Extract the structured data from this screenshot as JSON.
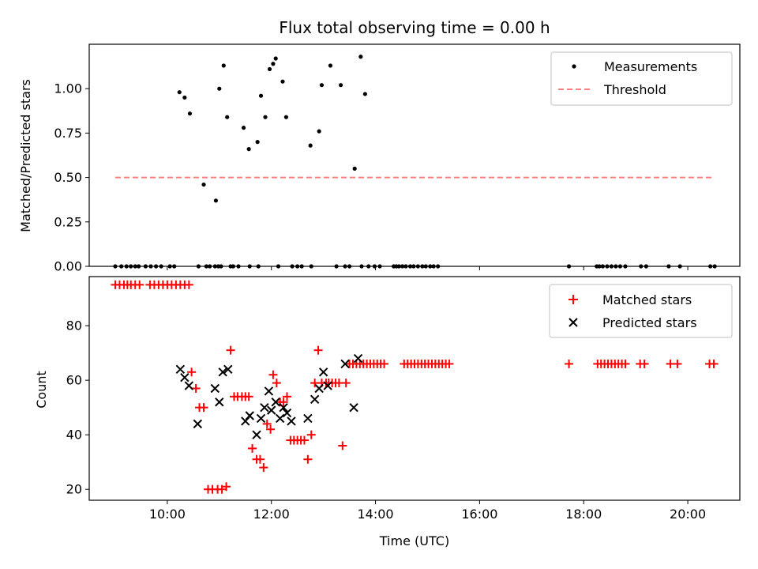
{
  "colors": {
    "measurements": "#000000",
    "threshold": "#ff7f7f",
    "matched": "#ff0000",
    "predicted": "#000000",
    "legend_border": "#cccccc"
  },
  "chart_data": [
    {
      "type": "scatter",
      "title": "Flux total observing time = 0.00 h",
      "xlabel": "",
      "ylabel": "Matched/Predicted stars",
      "xlim": [
        "08:30",
        "21:00"
      ],
      "ylim": [
        0,
        1.25
      ],
      "yticks": [
        "0.00",
        "0.25",
        "0.50",
        "0.75",
        "1.00"
      ],
      "yticks_values": [
        0,
        0.25,
        0.5,
        0.75,
        1.0
      ],
      "xtick_labels_shown": false,
      "grid": false,
      "legend": {
        "position": "upper right",
        "entries": [
          {
            "label": "Measurements",
            "marker": "dot"
          },
          {
            "label": "Threshold",
            "marker": "dashed-line"
          }
        ]
      },
      "series": [
        {
          "name": "Measurements",
          "x": [
            "09:00",
            "09:07",
            "09:13",
            "09:18",
            "09:23",
            "09:27",
            "09:35",
            "09:41",
            "09:47",
            "09:53",
            "10:03",
            "10:08",
            "10:14",
            "10:20",
            "10:26",
            "10:36",
            "10:42",
            "10:45",
            "10:49",
            "10:55",
            "10:56",
            "10:59",
            "11:00",
            "11:02",
            "11:05",
            "11:09",
            "11:13",
            "11:16",
            "11:22",
            "11:28",
            "11:34",
            "11:35",
            "11:44",
            "11:45",
            "11:48",
            "11:53",
            "11:58",
            "12:02",
            "12:05",
            "12:08",
            "12:13",
            "12:17",
            "12:24",
            "12:30",
            "12:35",
            "12:45",
            "12:46",
            "12:55",
            "12:58",
            "13:08",
            "13:15",
            "13:20",
            "13:25",
            "13:30",
            "13:36",
            "13:43",
            "13:44",
            "13:48",
            "13:52",
            "13:59",
            "14:05",
            "14:21",
            "14:24",
            "14:27",
            "14:31",
            "14:35",
            "14:40",
            "14:44",
            "14:49",
            "14:54",
            "14:58",
            "15:03",
            "15:07",
            "15:12",
            "17:43",
            "18:15",
            "18:18",
            "18:22",
            "18:27",
            "18:32",
            "18:37",
            "18:42",
            "18:48",
            "19:06",
            "19:12",
            "19:38",
            "19:51",
            "20:26",
            "20:31"
          ],
          "y": [
            0,
            0,
            0,
            0,
            0,
            0,
            0,
            0,
            0,
            0,
            0,
            0,
            0.98,
            0.95,
            0.86,
            0,
            0.46,
            0,
            0,
            0,
            0.37,
            0,
            1.0,
            0,
            1.13,
            0.84,
            0,
            0,
            0,
            0.78,
            0.66,
            0,
            0.7,
            0,
            0.96,
            0.84,
            1.11,
            1.14,
            1.17,
            0,
            1.04,
            0.84,
            0,
            0,
            0,
            0.68,
            0,
            0.76,
            1.02,
            1.13,
            0,
            1.02,
            0,
            0,
            0.55,
            1.18,
            0,
            0.97,
            0,
            0,
            0,
            0,
            0,
            0,
            0,
            0,
            0,
            0,
            0,
            0,
            0,
            0,
            0,
            0,
            0,
            0,
            0,
            0,
            0,
            0,
            0,
            0,
            0,
            0,
            0,
            0,
            0,
            0,
            0
          ]
        },
        {
          "name": "Threshold",
          "x": [
            "09:00",
            "20:30"
          ],
          "y": [
            0.5,
            0.5
          ]
        }
      ]
    },
    {
      "type": "scatter",
      "title": "",
      "xlabel": "Time (UTC)",
      "ylabel": "Count",
      "xlim": [
        "08:30",
        "21:00"
      ],
      "ylim": [
        16,
        98
      ],
      "xticks": [
        "10:00",
        "12:00",
        "14:00",
        "16:00",
        "18:00",
        "20:00"
      ],
      "yticks": [
        "20",
        "40",
        "60",
        "80"
      ],
      "yticks_values": [
        20,
        40,
        60,
        80
      ],
      "grid": false,
      "legend": {
        "position": "upper right",
        "entries": [
          {
            "label": "Matched stars",
            "marker": "plus"
          },
          {
            "label": "Predicted stars",
            "marker": "x"
          }
        ]
      },
      "series": [
        {
          "name": "Matched stars",
          "x": [
            "09:00",
            "09:05",
            "09:10",
            "09:14",
            "09:18",
            "09:23",
            "09:28",
            "09:40",
            "09:45",
            "09:50",
            "09:55",
            "10:00",
            "10:05",
            "10:10",
            "10:15",
            "10:20",
            "10:25",
            "10:28",
            "10:33",
            "10:37",
            "10:42",
            "10:47",
            "10:52",
            "10:58",
            "11:03",
            "11:08",
            "11:13",
            "11:17",
            "11:21",
            "11:26",
            "11:30",
            "11:34",
            "11:38",
            "11:43",
            "11:47",
            "11:51",
            "11:55",
            "11:59",
            "12:02",
            "12:06",
            "12:10",
            "12:14",
            "12:18",
            "12:22",
            "12:26",
            "12:30",
            "12:34",
            "12:38",
            "12:42",
            "12:46",
            "12:50",
            "12:54",
            "12:58",
            "13:03",
            "13:06",
            "13:10",
            "13:14",
            "13:18",
            "13:22",
            "13:26",
            "13:30",
            "13:34",
            "13:38",
            "13:42",
            "13:46",
            "13:50",
            "13:54",
            "13:58",
            "14:02",
            "14:06",
            "14:10",
            "14:33",
            "14:37",
            "14:41",
            "14:45",
            "14:49",
            "14:53",
            "14:57",
            "15:01",
            "15:05",
            "15:09",
            "15:13",
            "15:17",
            "15:21",
            "15:25",
            "17:43",
            "18:16",
            "18:20",
            "18:24",
            "18:28",
            "18:32",
            "18:36",
            "18:40",
            "18:44",
            "18:48",
            "19:05",
            "19:10",
            "19:40",
            "19:48",
            "20:25",
            "20:30"
          ],
          "y": [
            95,
            95,
            95,
            95,
            95,
            95,
            95,
            95,
            95,
            95,
            95,
            95,
            95,
            95,
            95,
            95,
            95,
            63,
            57,
            50,
            50,
            20,
            20,
            20,
            20,
            21,
            71,
            54,
            54,
            54,
            54,
            54,
            35,
            31,
            31,
            28,
            44,
            42,
            62,
            59,
            52,
            52,
            54,
            38,
            38,
            38,
            38,
            38,
            31,
            40,
            59,
            71,
            59,
            59,
            59,
            59,
            59,
            59,
            36,
            59,
            66,
            66,
            66,
            66,
            66,
            66,
            66,
            66,
            66,
            66,
            66,
            66,
            66,
            66,
            66,
            66,
            66,
            66,
            66,
            66,
            66,
            66,
            66,
            66,
            66,
            66,
            66,
            66,
            66,
            66,
            66,
            66,
            66,
            66,
            66,
            66,
            66,
            66,
            66,
            66,
            66
          ]
        },
        {
          "name": "Predicted stars",
          "x": [
            "10:15",
            "10:20",
            "10:25",
            "10:35",
            "10:55",
            "11:00",
            "11:04",
            "11:10",
            "11:30",
            "11:35",
            "11:43",
            "11:48",
            "11:52",
            "11:57",
            "12:00",
            "12:05",
            "12:10",
            "12:14",
            "12:18",
            "12:23",
            "12:42",
            "12:50",
            "12:55",
            "13:00",
            "13:05",
            "13:25",
            "13:35",
            "13:40"
          ],
          "y": [
            64,
            61,
            58,
            44,
            57,
            52,
            63,
            64,
            45,
            47,
            40,
            46,
            50,
            56,
            49,
            52,
            46,
            50,
            48,
            45,
            46,
            53,
            57,
            63,
            58,
            66,
            50,
            68
          ]
        }
      ]
    }
  ]
}
